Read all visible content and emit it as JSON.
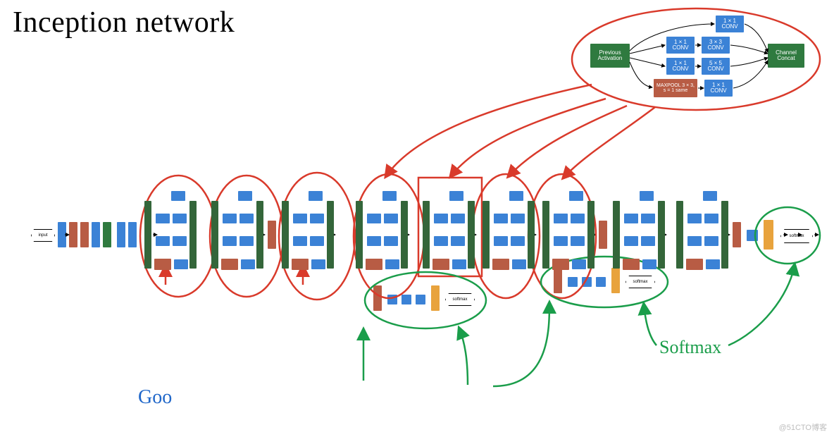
{
  "title": "Inception network",
  "watermark": "@51CTO博客",
  "colors": {
    "blue": "#3b82d6",
    "green": "#2f7a3f",
    "darkgreen": "#34663a",
    "brick": "#b85c44",
    "orange": "#e8a33d",
    "white": "#ffffff",
    "red_annot": "#d93a2b",
    "green_annot": "#1a9d4a",
    "black": "#000000"
  },
  "inception_detail": {
    "prev": "Previous\nActivation",
    "concat": "Channel\nConcat",
    "c1": "1 × 1\nCONV",
    "c3": "3 × 3\nCONV",
    "c5": "5 × 5\nCONV",
    "mp": "MAXPOOL\n3 × 3, s = 1\nsame"
  },
  "chain": {
    "input": "input",
    "softmax": "softmax",
    "hand_softmax": "Softmax",
    "hand_goo": "Goo"
  }
}
